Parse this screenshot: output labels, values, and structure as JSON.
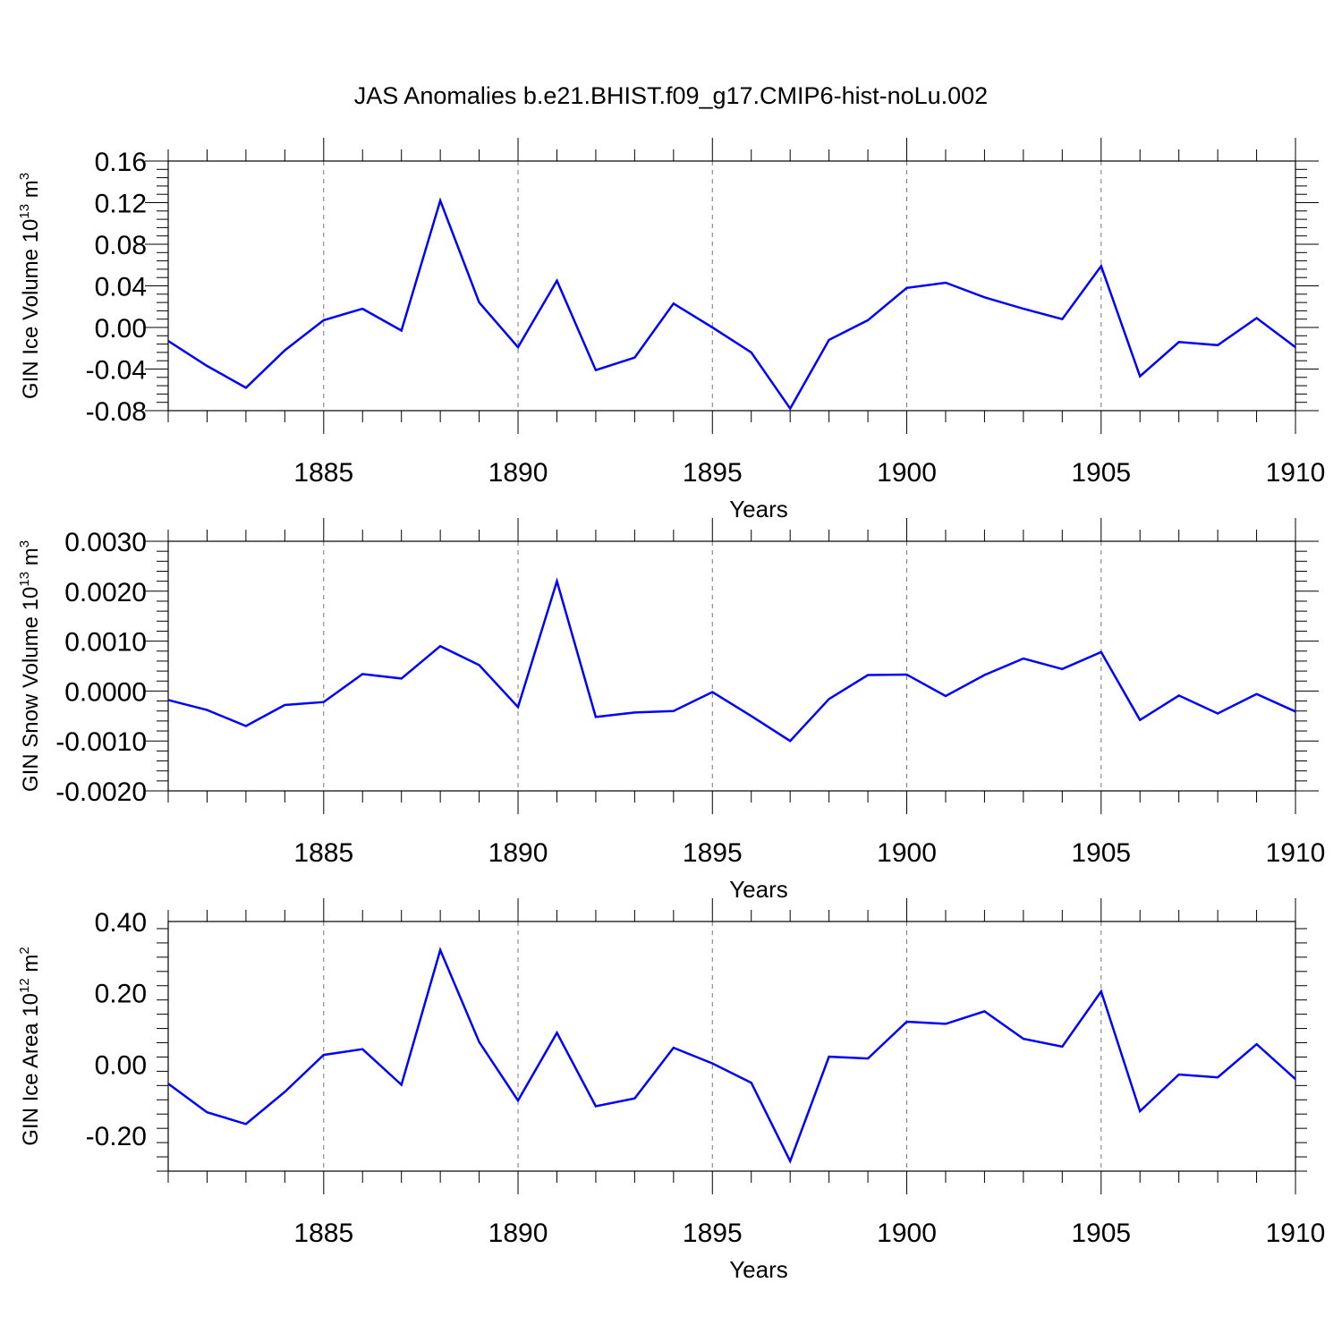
{
  "figure_title": "JAS Anomalies b.e21.BHIST.f09_g17.CMIP6-hist-noLu.002",
  "line_color": "#0000ff",
  "chart_data": [
    {
      "type": "line",
      "ylabel_main": "GIN Ice Volume 10",
      "ylabel_exp": "13",
      "ylabel_unit": " m",
      "ylabel_unit_exp": "3",
      "xlabel": "Years",
      "xlim": [
        1881,
        1910
      ],
      "ylim": [
        -0.08,
        0.16
      ],
      "yticks": [
        -0.08,
        -0.04,
        0.0,
        0.04,
        0.08,
        0.12,
        0.16
      ],
      "ytick_labels": [
        "-0.08",
        "-0.04",
        "0.00",
        "0.04",
        "0.08",
        "0.12",
        "0.16"
      ],
      "xticks": [
        1885,
        1890,
        1895,
        1900,
        1905,
        1910
      ],
      "xtick_labels": [
        "1885",
        "1890",
        "1895",
        "1900",
        "1905",
        "1910"
      ],
      "x": [
        1881,
        1882,
        1883,
        1884,
        1885,
        1886,
        1887,
        1888,
        1889,
        1890,
        1891,
        1892,
        1893,
        1894,
        1895,
        1896,
        1897,
        1898,
        1899,
        1900,
        1901,
        1902,
        1903,
        1904,
        1905,
        1906,
        1907,
        1908,
        1909,
        1910
      ],
      "values": [
        -0.013,
        -0.037,
        -0.058,
        -0.022,
        0.007,
        0.018,
        -0.003,
        0.122,
        0.024,
        -0.019,
        0.045,
        -0.041,
        -0.029,
        0.023,
        0.0,
        -0.024,
        -0.078,
        -0.012,
        0.007,
        0.038,
        0.043,
        0.029,
        0.018,
        0.008,
        0.059,
        -0.047,
        -0.014,
        -0.017,
        0.009,
        -0.019
      ]
    },
    {
      "type": "line",
      "ylabel_main": "GIN Snow Volume 10",
      "ylabel_exp": "13",
      "ylabel_unit": " m",
      "ylabel_unit_exp": "3",
      "xlabel": "Years",
      "xlim": [
        1881,
        1910
      ],
      "ylim": [
        -0.002,
        0.003
      ],
      "yticks": [
        -0.002,
        -0.001,
        0.0,
        0.001,
        0.002,
        0.003
      ],
      "ytick_labels": [
        "-0.0020",
        "-0.0010",
        "0.0000",
        "0.0010",
        "0.0020",
        "0.0030"
      ],
      "xticks": [
        1885,
        1890,
        1895,
        1900,
        1905,
        1910
      ],
      "xtick_labels": [
        "1885",
        "1890",
        "1895",
        "1900",
        "1905",
        "1910"
      ],
      "x": [
        1881,
        1882,
        1883,
        1884,
        1885,
        1886,
        1887,
        1888,
        1889,
        1890,
        1891,
        1892,
        1893,
        1894,
        1895,
        1896,
        1897,
        1898,
        1899,
        1900,
        1901,
        1902,
        1903,
        1904,
        1905,
        1906,
        1907,
        1908,
        1909,
        1910
      ],
      "values": [
        -0.00018,
        -0.00038,
        -0.0007,
        -0.00028,
        -0.00022,
        0.00034,
        0.00025,
        0.0009,
        0.00052,
        -0.00032,
        0.0022,
        -0.00052,
        -0.00043,
        -0.0004,
        -2e-05,
        -0.0005,
        -0.001,
        -0.00016,
        0.00032,
        0.00033,
        -0.0001,
        0.00032,
        0.00065,
        0.00044,
        0.00078,
        -0.00058,
        -9e-05,
        -0.00045,
        -6e-05,
        -0.00041
      ]
    },
    {
      "type": "line",
      "ylabel_main": "GIN Ice Area 10",
      "ylabel_exp": "12",
      "ylabel_unit": " m",
      "ylabel_unit_exp": "2",
      "xlabel": "Years",
      "xlim": [
        1881,
        1910
      ],
      "ylim": [
        -0.3,
        0.4
      ],
      "yticks": [
        -0.2,
        0.0,
        0.2,
        0.4
      ],
      "ytick_labels": [
        "-0.20",
        "0.00",
        "0.20",
        "0.40"
      ],
      "xticks": [
        1885,
        1890,
        1895,
        1900,
        1905,
        1910
      ],
      "xtick_labels": [
        "1885",
        "1890",
        "1895",
        "1900",
        "1905",
        "1910"
      ],
      "x": [
        1881,
        1882,
        1883,
        1884,
        1885,
        1886,
        1887,
        1888,
        1889,
        1890,
        1891,
        1892,
        1893,
        1894,
        1895,
        1896,
        1897,
        1898,
        1899,
        1900,
        1901,
        1902,
        1903,
        1904,
        1905,
        1906,
        1907,
        1908,
        1909,
        1910
      ],
      "values": [
        -0.055,
        -0.135,
        -0.168,
        -0.078,
        0.026,
        0.042,
        -0.058,
        0.32,
        0.062,
        -0.102,
        0.088,
        -0.118,
        -0.096,
        0.046,
        0.002,
        -0.052,
        -0.272,
        0.021,
        0.016,
        0.119,
        0.113,
        0.148,
        0.071,
        0.049,
        0.204,
        -0.132,
        -0.029,
        -0.037,
        0.056,
        -0.042
      ]
    }
  ]
}
